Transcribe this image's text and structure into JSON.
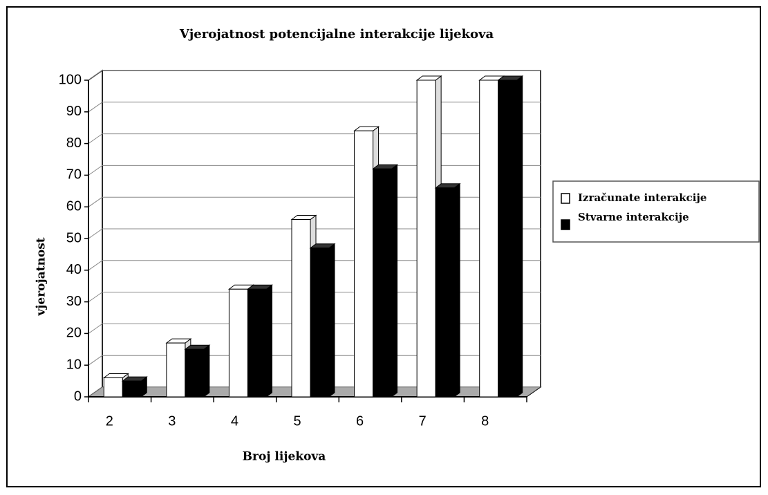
{
  "chart_data": {
    "type": "bar3d",
    "title": "Vjerojatnost potencijalne interakcije lijekova",
    "x_label": "Broj lijekova",
    "y_label": "vjerojatnost",
    "categories": [
      "2",
      "3",
      "4",
      "5",
      "6",
      "7",
      "8"
    ],
    "series": [
      {
        "name": "Izračunate interakcije",
        "color": "#ffffff",
        "values": [
          6,
          17,
          34,
          56,
          84,
          100,
          100
        ]
      },
      {
        "name": "Stvarne interakcije",
        "color": "#000000",
        "values": [
          5,
          15,
          34,
          47,
          72,
          66,
          100
        ]
      }
    ],
    "ylim": [
      0,
      100
    ],
    "yticks": [
      0,
      10,
      20,
      30,
      40,
      50,
      60,
      70,
      80,
      90,
      100
    ],
    "grid": true,
    "legend": "right"
  }
}
